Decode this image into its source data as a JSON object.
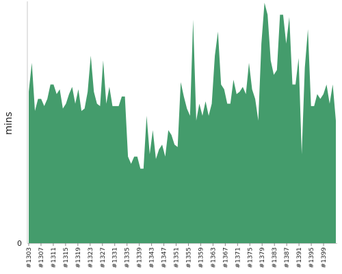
{
  "chart_data": {
    "type": "area",
    "ylabel": "mins",
    "xlabel": "",
    "title": "",
    "ylim": [
      0,
      100
    ],
    "y_ticks": [
      "0"
    ],
    "x_tick_labels": [
      "#1303",
      "#1307",
      "#1311",
      "#1315",
      "#1319",
      "#1323",
      "#1327",
      "#1331",
      "#1335",
      "#1339",
      "#1343",
      "#1347",
      "#1351",
      "#1355",
      "#1359",
      "#1363",
      "#1367",
      "#1371",
      "#1375",
      "#1379",
      "#1383",
      "#1387",
      "#1391",
      "#1395",
      "#1399"
    ],
    "x_start": 1303,
    "x_end": 1403,
    "color": "#449c6c",
    "series": [
      {
        "values": [
          63,
          75,
          55,
          60,
          60,
          57,
          60,
          66,
          66,
          62,
          64,
          56,
          58,
          62,
          65,
          58,
          64,
          55,
          56,
          63,
          78,
          63,
          58,
          57,
          76,
          58,
          65,
          57,
          57,
          57,
          61,
          61,
          36,
          33,
          36,
          36,
          31,
          31,
          53,
          37,
          47,
          35,
          39,
          41,
          36,
          47,
          45,
          41,
          40,
          67,
          61,
          56,
          53,
          93,
          51,
          58,
          53,
          59,
          53,
          58,
          78,
          88,
          66,
          64,
          58,
          58,
          68,
          62,
          63,
          65,
          62,
          75,
          64,
          60,
          51,
          83,
          100,
          95,
          76,
          70,
          72,
          95,
          95,
          83,
          94,
          66,
          66,
          77,
          37,
          73,
          89,
          57,
          57,
          62,
          60,
          62,
          66,
          58,
          66,
          51
        ]
      }
    ]
  }
}
